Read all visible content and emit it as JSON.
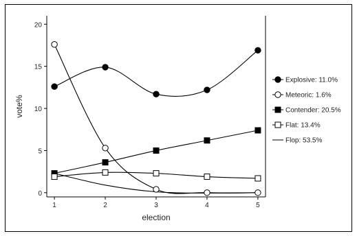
{
  "chart_data": {
    "type": "line",
    "title": "",
    "xlabel": "election",
    "ylabel": "vote%",
    "x": [
      1,
      2,
      3,
      4,
      5
    ],
    "xlim": [
      0.85,
      5.15
    ],
    "ylim": [
      -0.5,
      21
    ],
    "xticks": [
      1,
      2,
      3,
      4,
      5
    ],
    "yticks": [
      0,
      5,
      10,
      15,
      20
    ],
    "grid": false,
    "legend_position": "right",
    "series": [
      {
        "name": "Explosive: 11.0%",
        "values": [
          12.6,
          14.9,
          11.7,
          12.2,
          16.9
        ],
        "marker": "filled-circle",
        "color": "#000000"
      },
      {
        "name": "Meteoric: 1.6%",
        "values": [
          17.6,
          5.3,
          0.4,
          0.0,
          0.0
        ],
        "marker": "open-circle",
        "color": "#000000"
      },
      {
        "name": "Contender: 20.5%",
        "values": [
          2.3,
          3.6,
          5.0,
          6.2,
          7.4
        ],
        "marker": "filled-square",
        "color": "#000000"
      },
      {
        "name": "Flat: 13.4%",
        "values": [
          1.9,
          2.4,
          2.3,
          1.9,
          1.7
        ],
        "marker": "open-square",
        "color": "#000000"
      },
      {
        "name": "Flop: 53.5%",
        "values": [
          2.3,
          0.9,
          0.1,
          -0.05,
          0.0
        ],
        "marker": "none",
        "color": "#000000"
      }
    ]
  }
}
